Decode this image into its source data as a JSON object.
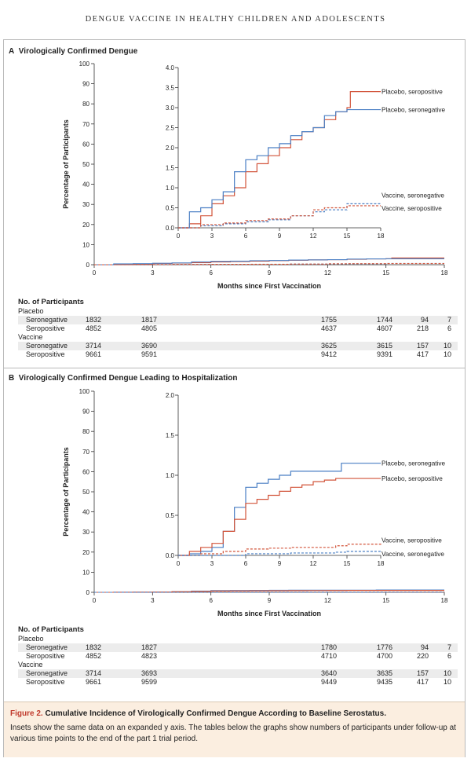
{
  "header": "DENGUE VACCINE IN HEALTHY CHILDREN AND ADOLESCENTS",
  "panels": [
    {
      "letter": "A",
      "title": "Virologically Confirmed Dengue",
      "ylabel": "Percentage of Participants",
      "xlabel": "Months since First Vaccination",
      "main_y_ticks": [
        "0",
        "10",
        "20",
        "30",
        "40",
        "50",
        "60",
        "70",
        "80",
        "90",
        "100"
      ],
      "x_ticks": [
        "0",
        "3",
        "6",
        "9",
        "12",
        "15",
        "18"
      ],
      "inset_y_ticks": [
        "0.0",
        "0.5",
        "1.0",
        "1.5",
        "2.0",
        "2.5",
        "3.0",
        "3.5",
        "4.0"
      ],
      "inset_x_ticks": [
        "0",
        "3",
        "6",
        "9",
        "12",
        "15",
        "18"
      ],
      "series_labels": [
        "Placebo, seropositive",
        "Placebo, seronegative",
        "Vaccine, seronegative",
        "Vaccine, seropositive"
      ],
      "table": {
        "header": "No. of Participants",
        "groups": [
          {
            "name": "Placebo",
            "rows": [
              {
                "label": "Seronegative",
                "values": [
                  "1832",
                  "1817",
                  "1755",
                  "1744",
                  "94",
                  "7"
                ]
              },
              {
                "label": "Seropositive",
                "values": [
                  "4852",
                  "4805",
                  "4637",
                  "4607",
                  "218",
                  "6"
                ]
              }
            ]
          },
          {
            "name": "Vaccine",
            "rows": [
              {
                "label": "Seronegative",
                "values": [
                  "3714",
                  "3690",
                  "3625",
                  "3615",
                  "157",
                  "10"
                ]
              },
              {
                "label": "Seropositive",
                "values": [
                  "9661",
                  "9591",
                  "9412",
                  "9391",
                  "417",
                  "10"
                ]
              }
            ]
          }
        ]
      }
    },
    {
      "letter": "B",
      "title": "Virologically Confirmed Dengue Leading to Hospitalization",
      "ylabel": "Percentage of Participants",
      "xlabel": "Months since First Vaccination",
      "main_y_ticks": [
        "0",
        "10",
        "20",
        "30",
        "40",
        "50",
        "60",
        "70",
        "80",
        "90",
        "100"
      ],
      "x_ticks": [
        "0",
        "3",
        "6",
        "9",
        "12",
        "15",
        "18"
      ],
      "inset_y_ticks": [
        "0.0",
        "0.5",
        "1.0",
        "1.5",
        "2.0"
      ],
      "inset_x_ticks": [
        "0",
        "3",
        "6",
        "9",
        "12",
        "15",
        "18"
      ],
      "series_labels": [
        "Placebo, seronegative",
        "Placebo, seropositive",
        "Vaccine, seropositive",
        "Vaccine, seronegative"
      ],
      "table": {
        "header": "No. of Participants",
        "groups": [
          {
            "name": "Placebo",
            "rows": [
              {
                "label": "Seronegative",
                "values": [
                  "1832",
                  "1827",
                  "1780",
                  "1776",
                  "94",
                  "7"
                ]
              },
              {
                "label": "Seropositive",
                "values": [
                  "4852",
                  "4823",
                  "4710",
                  "4700",
                  "220",
                  "6"
                ]
              }
            ]
          },
          {
            "name": "Vaccine",
            "rows": [
              {
                "label": "Seronegative",
                "values": [
                  "3714",
                  "3693",
                  "3640",
                  "3635",
                  "157",
                  "10"
                ]
              },
              {
                "label": "Seropositive",
                "values": [
                  "9661",
                  "9599",
                  "9449",
                  "9435",
                  "417",
                  "10"
                ]
              }
            ]
          }
        ]
      }
    }
  ],
  "caption": {
    "label": "Figure 2.",
    "title": "Cumulative Incidence of Virologically Confirmed Dengue According to Baseline Serostatus.",
    "text": "Insets show the same data on an expanded y axis. The tables below the graphs show numbers of participants under follow-up at various time points to the end of the part 1 trial period."
  },
  "colors": {
    "placebo": "#d2543a",
    "vaccine_seronegative": "#4a7fc4",
    "placebo_seronegative": "#4a7fc4",
    "placebo_seropositive": "#d2543a",
    "vaccine_seropositive": "#d2543a"
  },
  "chart_data": [
    {
      "type": "line",
      "title": "Virologically Confirmed Dengue",
      "xlabel": "Months since First Vaccination",
      "ylabel": "Percentage of Participants",
      "xlim": [
        0,
        18
      ],
      "ylim": [
        0,
        100
      ],
      "inset_ylim": [
        0,
        4.0
      ],
      "series": [
        {
          "name": "Placebo, seropositive",
          "style": "solid",
          "color": "#d2543a",
          "x": [
            0,
            1,
            2,
            3,
            4,
            5,
            6,
            7,
            8,
            9,
            10,
            11,
            12,
            13,
            14,
            15,
            15.3,
            18
          ],
          "y": [
            0,
            0.1,
            0.3,
            0.6,
            0.8,
            1.0,
            1.4,
            1.6,
            1.8,
            2.0,
            2.2,
            2.4,
            2.5,
            2.7,
            2.9,
            3.0,
            3.4,
            3.4
          ]
        },
        {
          "name": "Placebo, seronegative",
          "style": "solid",
          "color": "#4a7fc4",
          "x": [
            0,
            1,
            2,
            3,
            4,
            5,
            6,
            7,
            8,
            9,
            10,
            11,
            12,
            13,
            14,
            15,
            18
          ],
          "y": [
            0,
            0.4,
            0.5,
            0.7,
            0.9,
            1.4,
            1.7,
            1.8,
            2.0,
            2.1,
            2.3,
            2.4,
            2.5,
            2.8,
            2.9,
            2.95,
            2.95
          ]
        },
        {
          "name": "Vaccine, seronegative",
          "style": "dashed",
          "color": "#4a7fc4",
          "x": [
            0,
            2,
            4,
            6,
            8,
            10,
            12,
            13,
            15,
            18
          ],
          "y": [
            0,
            0.05,
            0.1,
            0.15,
            0.2,
            0.3,
            0.4,
            0.45,
            0.6,
            0.6
          ]
        },
        {
          "name": "Vaccine, seropositive",
          "style": "dashed",
          "color": "#d2543a",
          "x": [
            0,
            2,
            4,
            6,
            8,
            10,
            12,
            13,
            15,
            18
          ],
          "y": [
            0,
            0.08,
            0.12,
            0.18,
            0.22,
            0.3,
            0.45,
            0.5,
            0.55,
            0.55
          ]
        }
      ]
    },
    {
      "type": "line",
      "title": "Virologically Confirmed Dengue Leading to Hospitalization",
      "xlabel": "Months since First Vaccination",
      "ylabel": "Percentage of Participants",
      "xlim": [
        0,
        18
      ],
      "ylim": [
        0,
        100
      ],
      "inset_ylim": [
        0,
        2.0
      ],
      "series": [
        {
          "name": "Placebo, seronegative",
          "style": "solid",
          "color": "#4a7fc4",
          "x": [
            0,
            1,
            2,
            3,
            4,
            5,
            6,
            7,
            8,
            9,
            10,
            11,
            12,
            13,
            14,
            14.5,
            15,
            18
          ],
          "y": [
            0,
            0.02,
            0.05,
            0.1,
            0.3,
            0.6,
            0.85,
            0.9,
            0.95,
            1.0,
            1.05,
            1.05,
            1.05,
            1.05,
            1.05,
            1.15,
            1.15,
            1.15
          ]
        },
        {
          "name": "Placebo, seropositive",
          "style": "solid",
          "color": "#d2543a",
          "x": [
            0,
            1,
            2,
            3,
            4,
            5,
            6,
            7,
            8,
            9,
            10,
            11,
            12,
            13,
            14,
            15,
            18
          ],
          "y": [
            0,
            0.05,
            0.1,
            0.15,
            0.3,
            0.45,
            0.65,
            0.7,
            0.75,
            0.8,
            0.85,
            0.88,
            0.92,
            0.94,
            0.96,
            0.96,
            0.96
          ]
        },
        {
          "name": "Vaccine, seropositive",
          "style": "dashed",
          "color": "#d2543a",
          "x": [
            0,
            2,
            4,
            6,
            8,
            10,
            12,
            14,
            15,
            18
          ],
          "y": [
            0,
            0.02,
            0.05,
            0.08,
            0.09,
            0.1,
            0.1,
            0.12,
            0.14,
            0.15
          ]
        },
        {
          "name": "Vaccine, seronegative",
          "style": "dashed",
          "color": "#4a7fc4",
          "x": [
            0,
            2,
            4,
            6,
            8,
            10,
            12,
            14,
            15,
            18
          ],
          "y": [
            0,
            0.0,
            0.0,
            0.02,
            0.02,
            0.03,
            0.03,
            0.04,
            0.05,
            0.05
          ]
        }
      ]
    }
  ]
}
